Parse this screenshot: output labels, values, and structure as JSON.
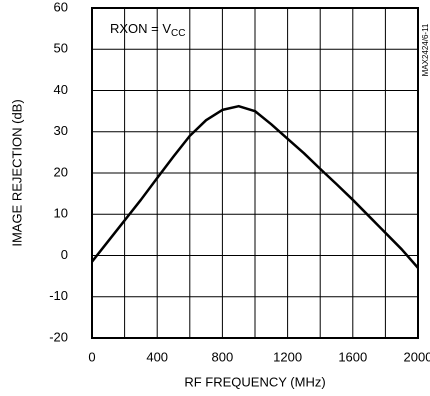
{
  "chart_data": {
    "type": "line",
    "xlabel": "RF FREQUENCY (MHz)",
    "ylabel": "IMAGE REJECTION (dB)",
    "annotation": {
      "text": "RXON = V",
      "subscript": "CC"
    },
    "side_label": "MAX2424/6-11",
    "x": [
      0,
      100,
      200,
      300,
      400,
      500,
      600,
      700,
      800,
      900,
      1000,
      1100,
      1200,
      1300,
      1400,
      1500,
      1600,
      1700,
      1800,
      1900,
      2000
    ],
    "series": [
      {
        "color": "#000000",
        "values": [
          -1.5,
          3.5,
          8.5,
          13.5,
          18.8,
          24,
          29,
          32.8,
          35.3,
          36.2,
          35,
          31.8,
          28.3,
          24.8,
          21,
          17.3,
          13.5,
          9.5,
          5.5,
          1.5,
          -3
        ]
      }
    ],
    "xlim": [
      0,
      2000
    ],
    "xticks": [
      0,
      400,
      800,
      1200,
      1600,
      2000
    ],
    "x_grid": [
      200,
      400,
      600,
      800,
      1000,
      1200,
      1400,
      1600,
      1800
    ],
    "ylim": [
      -20,
      60
    ],
    "yticks": [
      -20,
      -10,
      0,
      10,
      20,
      30,
      40,
      50,
      60
    ],
    "grid": true
  }
}
